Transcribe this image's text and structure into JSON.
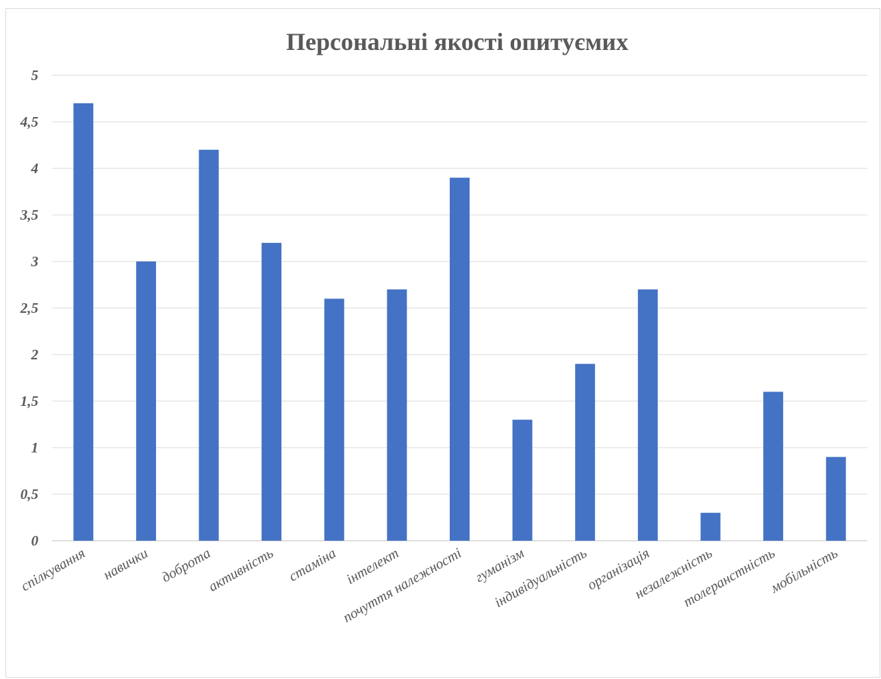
{
  "chart_data": {
    "type": "bar",
    "title": "Персональні якості опитуємих",
    "xlabel": "",
    "ylabel": "",
    "categories": [
      "спілкування",
      "навички",
      "доброта",
      "активність",
      "стаміна",
      "інтелект",
      "почуття належності",
      "гуманізм",
      "індивідуальність",
      "організація",
      "незалежність",
      "толеранстність",
      "мобільність"
    ],
    "values": [
      4.7,
      3.0,
      4.2,
      3.2,
      2.6,
      2.7,
      3.9,
      1.3,
      1.9,
      2.7,
      0.3,
      1.6,
      0.9
    ],
    "ylim": [
      0,
      5
    ],
    "yticks": [
      "0",
      "0,5",
      "1",
      "1,5",
      "2",
      "2,5",
      "3",
      "3,5",
      "4",
      "4,5",
      "5"
    ],
    "grid": true,
    "legend": "none",
    "bar_color": "#4472c4"
  }
}
